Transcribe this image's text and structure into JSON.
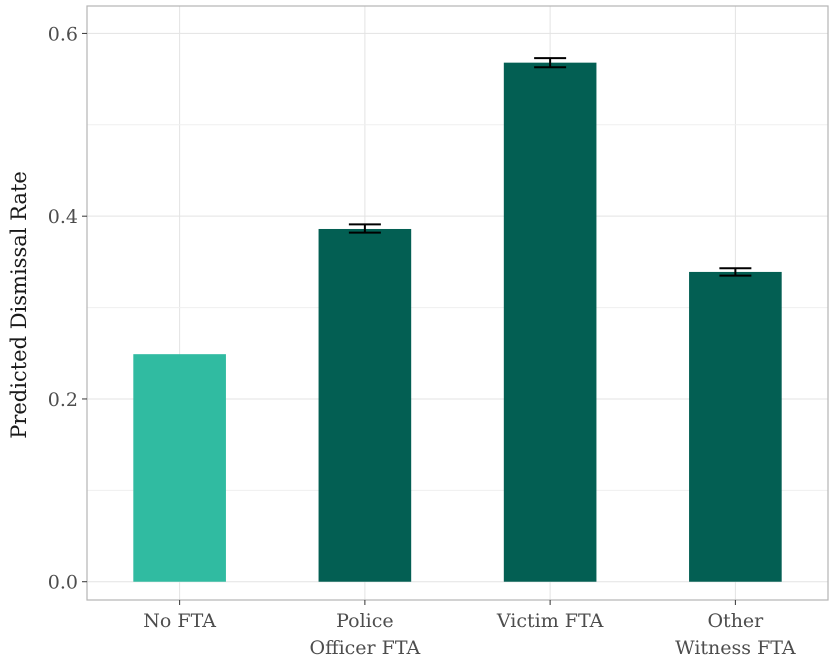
{
  "chart_data": {
    "type": "bar",
    "title": "",
    "xlabel": "",
    "ylabel": "Predicted Dismissal Rate",
    "ylim": [
      -0.02,
      0.63
    ],
    "yticks": [
      "0.0",
      "0.2",
      "0.4",
      "0.6"
    ],
    "ytick_values": [
      0.0,
      0.2,
      0.4,
      0.6
    ],
    "minor_ytick_values": [
      0.1,
      0.3,
      0.5
    ],
    "grid": true,
    "categories": [
      [
        "No FTA"
      ],
      [
        "Police",
        "Officer FTA"
      ],
      [
        "Victim FTA"
      ],
      [
        "Other",
        "Witness FTA"
      ]
    ],
    "values": [
      0.249,
      0.386,
      0.568,
      0.339
    ],
    "error_low": [
      null,
      0.382,
      0.563,
      0.335
    ],
    "error_high": [
      null,
      0.391,
      0.573,
      0.343
    ],
    "colors": [
      "#30bba1",
      "#035f53",
      "#035f53",
      "#035f53"
    ],
    "error_color": "#000000",
    "grid_color": "#e3e3e3",
    "panel_border_color": "#b5b5b5"
  }
}
